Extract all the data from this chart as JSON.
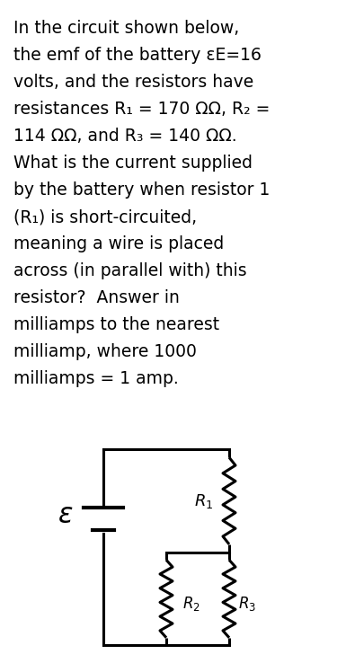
{
  "background_color": "#ffffff",
  "text_lines": [
    "In the circuit shown below,",
    "the emf of the battery εE=16",
    "volts, and the resistors have",
    "resistances R₁ = 170 ΩΩ, R₂ =",
    "114 ΩΩ, and R₃ = 140 ΩΩ.",
    "What is the current supplied",
    "by the battery when resistor 1",
    "(R₁) is short-circuited,",
    "meaning a wire is placed",
    "across (in parallel with) this",
    "resistor?  Answer in",
    "milliamps to the nearest",
    "milliamp, where 1000",
    "milliamps = 1 amp."
  ],
  "text_fontsize": 13.5,
  "fig_width": 3.75,
  "fig_height": 7.48,
  "lw": 2.2
}
